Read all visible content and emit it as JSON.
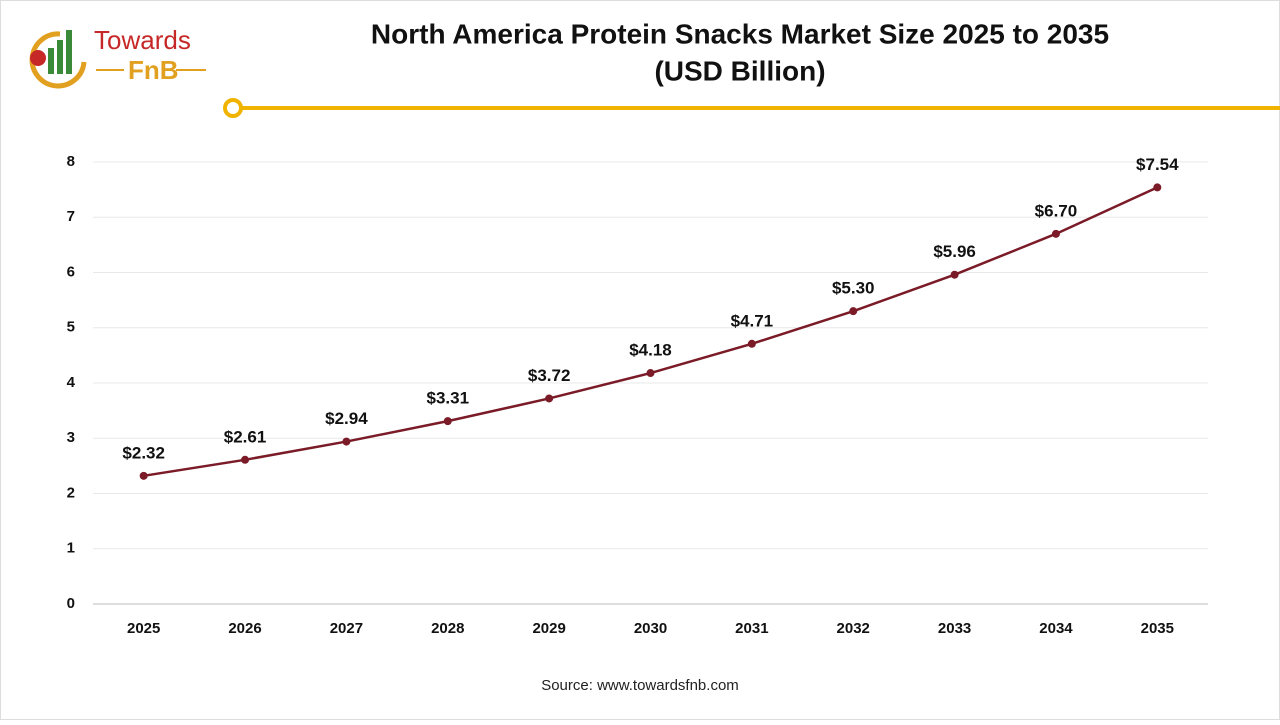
{
  "logo": {
    "line1": "Towards",
    "line2": "FnB"
  },
  "chart_data": {
    "type": "line",
    "title": "North America Protein Snacks Market Size 2025 to 2035",
    "subtitle": "(USD Billion)",
    "categories": [
      "2025",
      "2026",
      "2027",
      "2028",
      "2029",
      "2030",
      "2031",
      "2032",
      "2033",
      "2034",
      "2035"
    ],
    "values": [
      2.32,
      2.61,
      2.94,
      3.31,
      3.72,
      4.18,
      4.71,
      5.3,
      5.96,
      6.7,
      7.54
    ],
    "value_labels": [
      "$2.32",
      "$2.61",
      "$2.94",
      "$3.31",
      "$3.72",
      "$4.18",
      "$4.71",
      "$5.30",
      "$5.96",
      "$6.70",
      "$7.54"
    ],
    "color": "#7a1b27",
    "ylim": [
      0,
      8
    ],
    "yticks": [
      0,
      1,
      2,
      3,
      4,
      5,
      6,
      7,
      8
    ],
    "grid": true,
    "source": "Source: www.towardsfnb.com"
  }
}
